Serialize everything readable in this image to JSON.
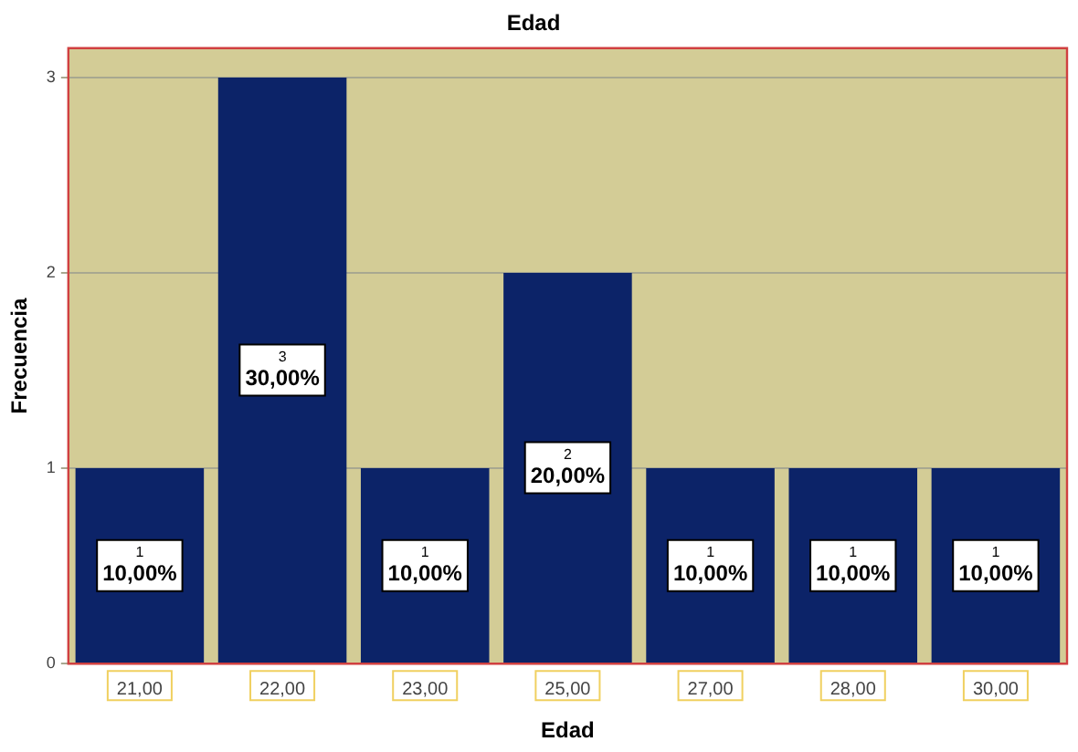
{
  "chart_data": {
    "type": "bar",
    "title": "Edad",
    "xlabel": "Edad",
    "ylabel": "Frecuencia",
    "categories": [
      "21,00",
      "22,00",
      "23,00",
      "25,00",
      "27,00",
      "28,00",
      "30,00"
    ],
    "values": [
      1,
      3,
      1,
      2,
      1,
      1,
      1
    ],
    "color": "#0c2368",
    "value_labels": [
      "1\n10,00%",
      "3\n30,00%",
      "1\n10,00%",
      "2\n20,00%",
      "1\n10,00%",
      "1\n10,00%",
      "1\n10,00%"
    ],
    "ylim": [
      0,
      3.15
    ],
    "yticks": [
      0,
      1,
      2,
      3
    ],
    "grid": "y"
  }
}
